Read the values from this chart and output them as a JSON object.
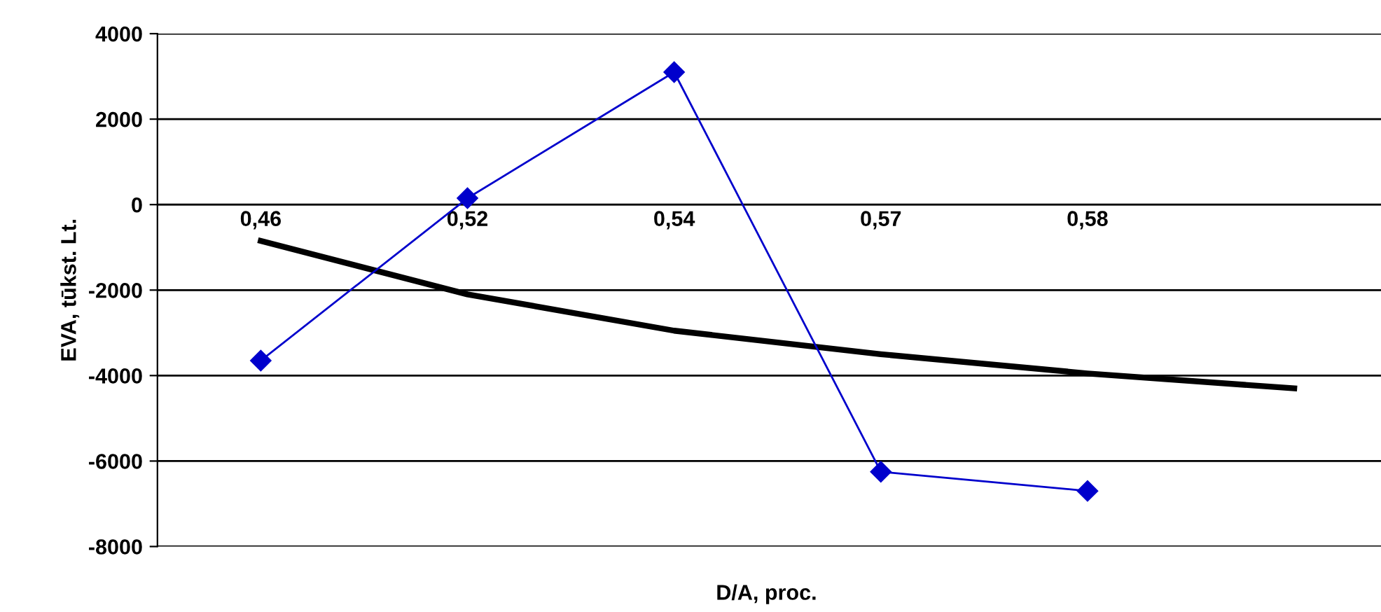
{
  "chart_data": {
    "type": "line",
    "xlabel": "D/A, proc.",
    "ylabel": "EVA, tūkst. Lt.",
    "categories": [
      "0,46",
      "0,52",
      "0,54",
      "0,57",
      "0,58",
      null
    ],
    "series": [
      {
        "color": "#0000cc",
        "marker": "diamond",
        "values": [
          -3650,
          150,
          3100,
          -6250,
          -6700,
          null
        ]
      },
      {
        "color": "#000000",
        "marker": "none",
        "values": [
          -850,
          -2100,
          -2950,
          -3500,
          -3950,
          -4300
        ]
      }
    ],
    "ylim": [
      -8000,
      4000
    ],
    "yticks": [
      -8000,
      -6000,
      -4000,
      -2000,
      0,
      2000,
      4000
    ],
    "grid": "y",
    "legend": false
  }
}
